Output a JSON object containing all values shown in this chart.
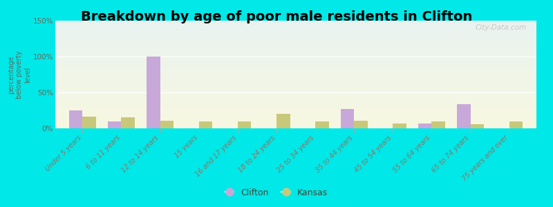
{
  "title": "Breakdown by age of poor male residents in Clifton",
  "ylabel": "percentage\nbelow poverty\nlevel",
  "categories": [
    "Under 5 years",
    "6 to 11 years",
    "12 to 14 years",
    "15 years",
    "16 and 17 years",
    "18 to 24 years",
    "25 to 34 years",
    "35 to 44 years",
    "45 to 54 years",
    "55 to 64 years",
    "65 to 74 years",
    "75 years and over"
  ],
  "clifton_values": [
    25,
    10,
    100,
    0,
    0,
    0,
    0,
    27,
    0,
    7,
    34,
    0
  ],
  "kansas_values": [
    16,
    15,
    11,
    10,
    10,
    20,
    10,
    11,
    7,
    10,
    6,
    10
  ],
  "clifton_color": "#c8a8d8",
  "kansas_color": "#c8c87a",
  "ylim": [
    0,
    150
  ],
  "yticks": [
    0,
    50,
    100,
    150
  ],
  "ytick_labels": [
    "0%",
    "50%",
    "100%",
    "150%"
  ],
  "outer_background": "#00e8e8",
  "title_fontsize": 14,
  "bar_width": 0.35,
  "watermark": "City-Data.com"
}
